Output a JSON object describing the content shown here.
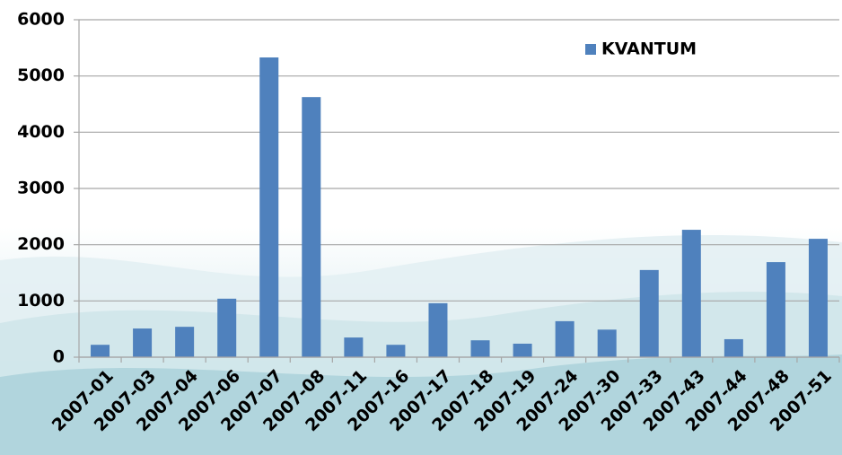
{
  "chart_data": {
    "type": "bar",
    "categories": [
      "2007-01",
      "2007-03",
      "2007-04",
      "2007-06",
      "2007-07",
      "2007-08",
      "2007-11",
      "2007-16",
      "2007-17",
      "2007-18",
      "2007-19",
      "2007-24",
      "2007-30",
      "2007-33",
      "2007-43",
      "2007-44",
      "2007-48",
      "2007-51"
    ],
    "series": [
      {
        "name": "KVANTUM",
        "color": "#4f81bd",
        "values": [
          220,
          510,
          540,
          1040,
          5330,
          4625,
          350,
          220,
          960,
          300,
          240,
          640,
          490,
          1550,
          2265,
          320,
          1690,
          2105
        ]
      }
    ],
    "ylim": [
      0,
      6000
    ],
    "yticks": [
      0,
      1000,
      2000,
      3000,
      4000,
      5000,
      6000
    ],
    "grid": true,
    "legend": "top-right"
  }
}
